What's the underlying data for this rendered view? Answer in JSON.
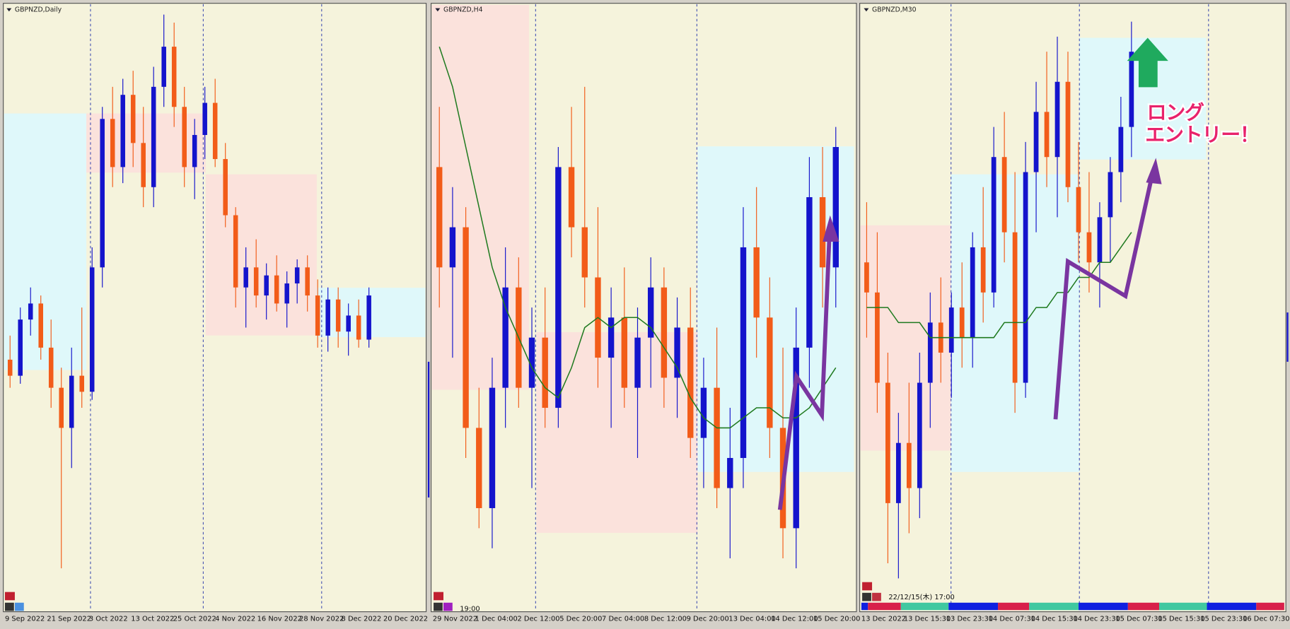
{
  "panels": [
    {
      "title": "GBPNZD,Daily",
      "x_labels": [
        "9 Sep 2022",
        "21 Sep 2022",
        "3 Oct 2022",
        "13 Oct 2022",
        "25 Oct 2022",
        "4 Nov 2022",
        "16 Nov 2022",
        "28 Nov 2022",
        "8 Dec 2022",
        "20 Dec 2022"
      ],
      "ylim": [
        1.85,
        2.0
      ],
      "candles": [
        [
          1.912,
          1.918,
          1.905,
          1.908
        ],
        [
          1.908,
          1.925,
          1.906,
          1.922
        ],
        [
          1.922,
          1.93,
          1.918,
          1.926
        ],
        [
          1.926,
          1.928,
          1.912,
          1.915
        ],
        [
          1.915,
          1.922,
          1.9,
          1.905
        ],
        [
          1.905,
          1.91,
          1.86,
          1.895
        ],
        [
          1.895,
          1.915,
          1.885,
          1.908
        ],
        [
          1.908,
          1.925,
          1.9,
          1.904
        ],
        [
          1.904,
          1.94,
          1.902,
          1.935
        ],
        [
          1.935,
          1.975,
          1.93,
          1.972
        ],
        [
          1.972,
          1.98,
          1.955,
          1.96
        ],
        [
          1.96,
          1.982,
          1.956,
          1.978
        ],
        [
          1.978,
          1.984,
          1.96,
          1.966
        ],
        [
          1.966,
          1.975,
          1.95,
          1.955
        ],
        [
          1.955,
          1.985,
          1.95,
          1.98
        ],
        [
          1.98,
          1.998,
          1.975,
          1.99
        ],
        [
          1.99,
          1.996,
          1.97,
          1.975
        ],
        [
          1.975,
          1.98,
          1.955,
          1.96
        ],
        [
          1.96,
          1.972,
          1.952,
          1.968
        ],
        [
          1.968,
          1.98,
          1.962,
          1.976
        ],
        [
          1.976,
          1.982,
          1.96,
          1.962
        ],
        [
          1.962,
          1.966,
          1.945,
          1.948
        ],
        [
          1.948,
          1.95,
          1.925,
          1.93
        ],
        [
          1.93,
          1.94,
          1.92,
          1.935
        ],
        [
          1.935,
          1.942,
          1.925,
          1.928
        ],
        [
          1.928,
          1.936,
          1.922,
          1.933
        ],
        [
          1.933,
          1.938,
          1.924,
          1.926
        ],
        [
          1.926,
          1.934,
          1.92,
          1.931
        ],
        [
          1.931,
          1.937,
          1.926,
          1.935
        ],
        [
          1.935,
          1.938,
          1.924,
          1.928
        ],
        [
          1.928,
          1.932,
          1.915,
          1.918
        ],
        [
          1.918,
          1.93,
          1.914,
          1.927
        ],
        [
          1.927,
          1.93,
          1.915,
          1.919
        ],
        [
          1.919,
          1.926,
          1.913,
          1.923
        ],
        [
          1.923,
          1.927,
          1.915,
          1.917
        ],
        [
          1.917,
          1.93,
          1.915,
          1.928
        ]
      ]
    },
    {
      "title": "GBPNZD,H4",
      "x_labels": [
        "29 Nov 2022",
        "1 Dec 04:00",
        "2 Dec 12:00",
        "5 Dec 20:00",
        "7 Dec 04:00",
        "8 Dec 12:00",
        "9 Dec 20:00",
        "13 Dec 04:00",
        "14 Dec 12:00",
        "15 Dec 20:00"
      ],
      "ylim": [
        1.9,
        1.96
      ],
      "candles": [
        [
          1.944,
          1.95,
          1.93,
          1.934
        ],
        [
          1.934,
          1.942,
          1.925,
          1.938
        ],
        [
          1.938,
          1.94,
          1.915,
          1.918
        ],
        [
          1.918,
          1.922,
          1.908,
          1.91
        ],
        [
          1.91,
          1.925,
          1.906,
          1.922
        ],
        [
          1.922,
          1.936,
          1.918,
          1.932
        ],
        [
          1.932,
          1.935,
          1.92,
          1.922
        ],
        [
          1.922,
          1.93,
          1.912,
          1.927
        ],
        [
          1.927,
          1.932,
          1.918,
          1.92
        ],
        [
          1.92,
          1.946,
          1.918,
          1.944
        ],
        [
          1.944,
          1.95,
          1.935,
          1.938
        ],
        [
          1.938,
          1.952,
          1.93,
          1.933
        ],
        [
          1.933,
          1.94,
          1.922,
          1.925
        ],
        [
          1.925,
          1.932,
          1.918,
          1.929
        ],
        [
          1.929,
          1.934,
          1.92,
          1.922
        ],
        [
          1.922,
          1.93,
          1.915,
          1.927
        ],
        [
          1.927,
          1.935,
          1.922,
          1.932
        ],
        [
          1.932,
          1.934,
          1.92,
          1.923
        ],
        [
          1.923,
          1.931,
          1.919,
          1.928
        ],
        [
          1.928,
          1.932,
          1.915,
          1.917
        ],
        [
          1.917,
          1.925,
          1.912,
          1.922
        ],
        [
          1.922,
          1.928,
          1.91,
          1.912
        ],
        [
          1.912,
          1.92,
          1.905,
          1.915
        ],
        [
          1.915,
          1.94,
          1.912,
          1.936
        ],
        [
          1.936,
          1.942,
          1.925,
          1.929
        ],
        [
          1.929,
          1.933,
          1.915,
          1.918
        ],
        [
          1.918,
          1.926,
          1.905,
          1.908
        ],
        [
          1.908,
          1.93,
          1.904,
          1.926
        ],
        [
          1.926,
          1.945,
          1.922,
          1.941
        ],
        [
          1.941,
          1.946,
          1.93,
          1.934
        ],
        [
          1.934,
          1.948,
          1.93,
          1.946
        ]
      ],
      "ma": [
        1.956,
        1.952,
        1.946,
        1.94,
        1.934,
        1.93,
        1.927,
        1.924,
        1.922,
        1.921,
        1.924,
        1.928,
        1.929,
        1.928,
        1.929,
        1.929,
        1.928,
        1.926,
        1.924,
        1.921,
        1.919,
        1.918,
        1.918,
        1.919,
        1.92,
        1.92,
        1.919,
        1.919,
        1.92,
        1.922,
        1.924
      ]
    },
    {
      "title": "GBPNZD,M30",
      "x_labels": [
        "13 Dec 2022",
        "13 Dec 15:30",
        "13 Dec 23:30",
        "14 Dec 07:30",
        "14 Dec 15:30",
        "14 Dec 23:30",
        "15 Dec 07:30",
        "15 Dec 15:30",
        "15 Dec 23:30",
        "16 Dec 07:30"
      ],
      "ylim": [
        1.915,
        1.955
      ],
      "candles": [
        [
          1.938,
          1.942,
          1.933,
          1.936
        ],
        [
          1.936,
          1.94,
          1.928,
          1.93
        ],
        [
          1.93,
          1.932,
          1.918,
          1.922
        ],
        [
          1.922,
          1.928,
          1.917,
          1.926
        ],
        [
          1.926,
          1.93,
          1.92,
          1.923
        ],
        [
          1.923,
          1.932,
          1.921,
          1.93
        ],
        [
          1.93,
          1.936,
          1.927,
          1.934
        ],
        [
          1.934,
          1.937,
          1.93,
          1.932
        ],
        [
          1.932,
          1.936,
          1.929,
          1.935
        ],
        [
          1.935,
          1.938,
          1.931,
          1.933
        ],
        [
          1.933,
          1.94,
          1.931,
          1.939
        ],
        [
          1.939,
          1.943,
          1.934,
          1.936
        ],
        [
          1.936,
          1.947,
          1.935,
          1.945
        ],
        [
          1.945,
          1.948,
          1.938,
          1.94
        ],
        [
          1.94,
          1.944,
          1.928,
          1.93
        ],
        [
          1.93,
          1.946,
          1.929,
          1.944
        ],
        [
          1.944,
          1.95,
          1.94,
          1.948
        ],
        [
          1.948,
          1.952,
          1.943,
          1.945
        ],
        [
          1.945,
          1.953,
          1.941,
          1.95
        ],
        [
          1.95,
          1.952,
          1.942,
          1.943
        ],
        [
          1.943,
          1.946,
          1.938,
          1.94
        ],
        [
          1.94,
          1.944,
          1.936,
          1.938
        ],
        [
          1.938,
          1.942,
          1.935,
          1.941
        ],
        [
          1.941,
          1.945,
          1.938,
          1.944
        ],
        [
          1.944,
          1.949,
          1.942,
          1.947
        ],
        [
          1.947,
          1.954,
          1.945,
          1.952
        ]
      ],
      "ma": [
        1.935,
        1.935,
        1.935,
        1.934,
        1.934,
        1.934,
        1.933,
        1.933,
        1.933,
        1.933,
        1.933,
        1.933,
        1.933,
        1.934,
        1.934,
        1.934,
        1.935,
        1.935,
        1.936,
        1.936,
        1.937,
        1.937,
        1.938,
        1.938,
        1.939,
        1.94
      ]
    }
  ],
  "up_color": "#1414cc",
  "down_color": "#f25c19",
  "ma_color": "#1f7a1f",
  "time_label": "19:00",
  "cursor_time": "22/12/15(木) 17:00",
  "annotation": [
    "ロング",
    "エントリー！"
  ]
}
